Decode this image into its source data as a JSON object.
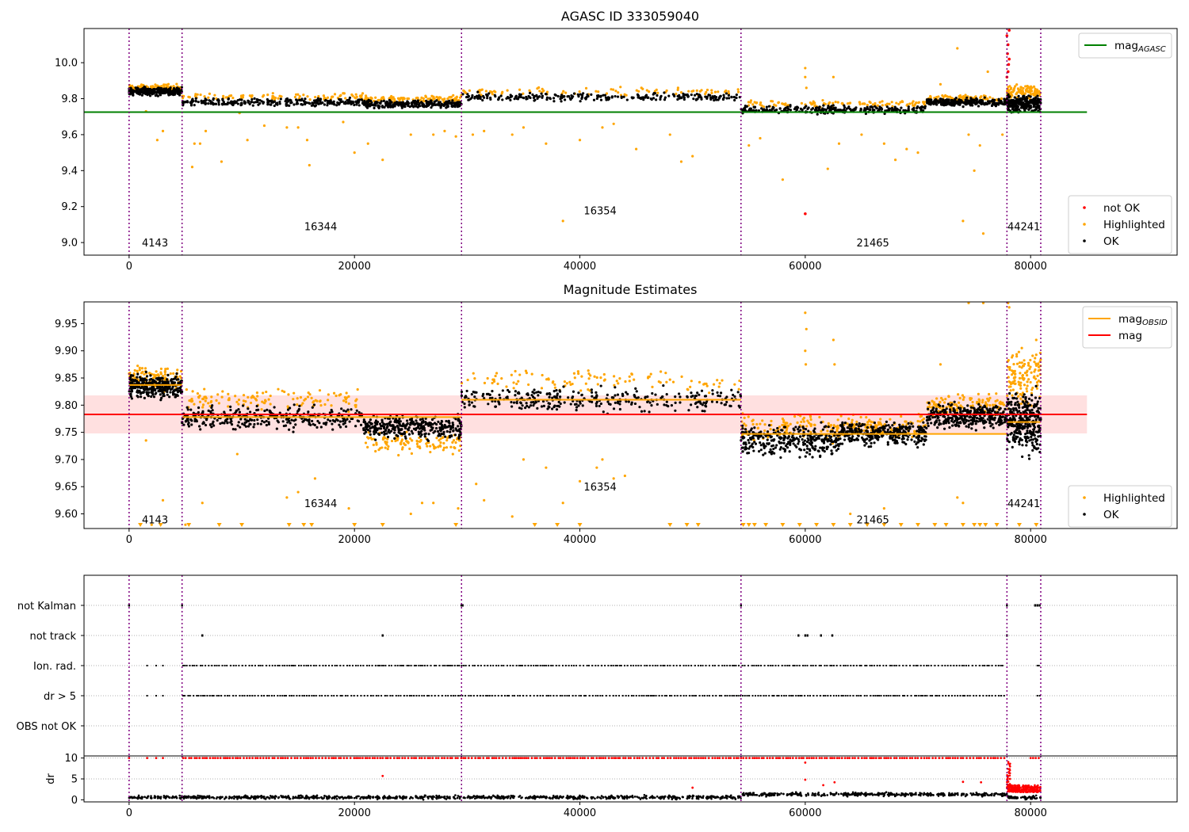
{
  "colors": {
    "ok": "#000000",
    "highlighted": "#ffa500",
    "not_ok": "#ff0000",
    "agasc_line": "#008000",
    "obsid_line": "#ffa500",
    "mag_line": "#ff0000",
    "mag_band": "#ffe0e0",
    "obs_boundary": "#800080",
    "grid": "#b0b0b0"
  },
  "chart_data": [
    {
      "type": "scatter",
      "title": "AGASC ID 333059040",
      "xlim": [
        -4000,
        93000
      ],
      "ylim": [
        8.93,
        10.19
      ],
      "x_ticks": [
        "0",
        "20000",
        "40000",
        "60000",
        "80000"
      ],
      "y_ticks": [
        "9.0",
        "9.2",
        "9.4",
        "9.6",
        "9.8",
        "10.0"
      ],
      "obs_boundaries": [
        0,
        4700,
        29500,
        54300,
        77900,
        80900
      ],
      "obs_labels": [
        {
          "text": "4143",
          "x": 2300,
          "y": 9.0
        },
        {
          "text": "16344",
          "x": 17000,
          "y": 9.09
        },
        {
          "text": "16354",
          "x": 41800,
          "y": 9.18
        },
        {
          "text": "21465",
          "x": 66000,
          "y": 9.0
        },
        {
          "text": "44241",
          "x": 79400,
          "y": 9.09
        }
      ],
      "hlines": [
        {
          "name": "mag_AGASC",
          "y": 9.725,
          "x_end": 85000
        }
      ],
      "segments": [
        {
          "x0": 0,
          "x1": 4700,
          "ok_center": 9.84,
          "ok_spread": 0.03,
          "hi_center": 9.86
        },
        {
          "x0": 4700,
          "x1": 20800,
          "ok_center": 9.78,
          "ok_spread": 0.03,
          "hi_center": 9.81
        },
        {
          "x0": 20800,
          "x1": 29500,
          "ok_center": 9.77,
          "ok_spread": 0.03,
          "hi_center": 9.8
        },
        {
          "x0": 29500,
          "x1": 54300,
          "ok_center": 9.81,
          "ok_spread": 0.03,
          "hi_center": 9.84
        },
        {
          "x0": 54300,
          "x1": 70800,
          "ok_center": 9.74,
          "ok_spread": 0.03,
          "hi_center": 9.77
        },
        {
          "x0": 70800,
          "x1": 77900,
          "ok_center": 9.78,
          "ok_spread": 0.03,
          "hi_center": 9.8
        },
        {
          "x0": 77900,
          "x1": 80900,
          "ok_center": 9.77,
          "ok_spread": 0.06,
          "hi_center": 9.84
        }
      ],
      "highlighted_outliers": [
        [
          1500,
          9.73
        ],
        [
          2500,
          9.57
        ],
        [
          3000,
          9.62
        ],
        [
          5800,
          9.55
        ],
        [
          5600,
          9.42
        ],
        [
          6300,
          9.55
        ],
        [
          6800,
          9.62
        ],
        [
          8200,
          9.45
        ],
        [
          9800,
          9.72
        ],
        [
          10500,
          9.57
        ],
        [
          12000,
          9.65
        ],
        [
          14000,
          9.64
        ],
        [
          15000,
          9.64
        ],
        [
          15800,
          9.57
        ],
        [
          16000,
          9.43
        ],
        [
          19000,
          9.67
        ],
        [
          20000,
          9.5
        ],
        [
          21200,
          9.55
        ],
        [
          22500,
          9.46
        ],
        [
          25000,
          9.6
        ],
        [
          27000,
          9.6
        ],
        [
          28000,
          9.62
        ],
        [
          29000,
          9.59
        ],
        [
          30500,
          9.6
        ],
        [
          31500,
          9.62
        ],
        [
          34000,
          9.6
        ],
        [
          35000,
          9.64
        ],
        [
          37000,
          9.55
        ],
        [
          38500,
          9.12
        ],
        [
          40000,
          9.57
        ],
        [
          42000,
          9.64
        ],
        [
          43000,
          9.66
        ],
        [
          45000,
          9.52
        ],
        [
          48000,
          9.6
        ],
        [
          49000,
          9.45
        ],
        [
          50000,
          9.48
        ],
        [
          55000,
          9.54
        ],
        [
          56000,
          9.58
        ],
        [
          58000,
          9.35
        ],
        [
          60000,
          9.97
        ],
        [
          60000,
          9.92
        ],
        [
          60100,
          9.86
        ],
        [
          62000,
          9.41
        ],
        [
          62500,
          9.92
        ],
        [
          63000,
          9.55
        ],
        [
          65000,
          9.6
        ],
        [
          67000,
          9.55
        ],
        [
          68000,
          9.46
        ],
        [
          69000,
          9.52
        ],
        [
          70000,
          9.5
        ],
        [
          72000,
          9.88
        ],
        [
          73500,
          10.08
        ],
        [
          74000,
          9.12
        ],
        [
          74500,
          9.6
        ],
        [
          75000,
          9.4
        ],
        [
          75500,
          9.54
        ],
        [
          75800,
          9.05
        ],
        [
          76200,
          9.95
        ],
        [
          77500,
          9.6
        ]
      ],
      "not_ok_points": [
        [
          60000,
          9.16
        ],
        [
          77900,
          10.15
        ],
        [
          78000,
          10.1
        ],
        [
          78100,
          10.18
        ],
        [
          77950,
          10.05
        ],
        [
          78050,
          9.99
        ],
        [
          78000,
          9.95
        ],
        [
          77900,
          9.92
        ],
        [
          78100,
          10.02
        ]
      ],
      "legends": [
        {
          "entries": [
            {
              "label": "mag",
              "sub": "AGASC",
              "kind": "line",
              "color": "#008000"
            }
          ]
        },
        {
          "entries": [
            {
              "label": "not OK",
              "kind": "dot",
              "color": "#ff0000"
            },
            {
              "label": "Highlighted",
              "kind": "dot",
              "color": "#ffa500"
            },
            {
              "label": "OK",
              "kind": "dot",
              "color": "#000000"
            }
          ]
        }
      ]
    },
    {
      "type": "scatter",
      "title": "Magnitude Estimates",
      "xlim": [
        -4000,
        93000
      ],
      "ylim": [
        9.573,
        9.99
      ],
      "x_ticks": [
        "0",
        "20000",
        "40000",
        "60000",
        "80000"
      ],
      "y_ticks": [
        "9.60",
        "9.65",
        "9.70",
        "9.75",
        "9.80",
        "9.85",
        "9.90",
        "9.95"
      ],
      "obs_boundaries": [
        0,
        4700,
        29500,
        54300,
        77900,
        80900
      ],
      "obs_labels": [
        {
          "text": "4143",
          "x": 2300,
          "y": 9.59
        },
        {
          "text": "16344",
          "x": 17000,
          "y": 9.62
        },
        {
          "text": "16354",
          "x": 41800,
          "y": 9.65
        },
        {
          "text": "21465",
          "x": 66000,
          "y": 9.59
        },
        {
          "text": "44241",
          "x": 79400,
          "y": 9.62
        }
      ],
      "mag_line": {
        "y": 9.783,
        "x_end": 85000
      },
      "mag_band": [
        9.748,
        9.818
      ],
      "obsid_lines": [
        {
          "x0": 0,
          "x1": 4700,
          "y": 9.837
        },
        {
          "x0": 4700,
          "x1": 29500,
          "y": 9.778
        },
        {
          "x0": 29500,
          "x1": 54300,
          "y": 9.81
        },
        {
          "x0": 54300,
          "x1": 77900,
          "y": 9.747
        },
        {
          "x0": 77900,
          "x1": 80900,
          "y": 9.769
        }
      ],
      "segments": [
        {
          "x0": 0,
          "x1": 4700,
          "ok_center": 9.835,
          "ok_spread": 0.03,
          "hi_center": 9.85
        },
        {
          "x0": 4700,
          "x1": 20800,
          "ok_center": 9.777,
          "ok_spread": 0.03,
          "hi_center": 9.81
        },
        {
          "x0": 20800,
          "x1": 29500,
          "ok_center": 9.76,
          "ok_spread": 0.03,
          "hi_center": 9.73
        },
        {
          "x0": 29500,
          "x1": 54300,
          "ok_center": 9.81,
          "ok_spread": 0.03,
          "hi_center": 9.845
        },
        {
          "x0": 54300,
          "x1": 63000,
          "ok_center": 9.735,
          "ok_spread": 0.04,
          "hi_center": 9.76
        },
        {
          "x0": 63000,
          "x1": 70800,
          "ok_center": 9.748,
          "ok_spread": 0.03,
          "hi_center": 9.76
        },
        {
          "x0": 70800,
          "x1": 77900,
          "ok_center": 9.78,
          "ok_spread": 0.03,
          "hi_center": 9.8
        },
        {
          "x0": 77900,
          "x1": 80900,
          "ok_center": 9.77,
          "ok_spread": 0.08,
          "hi_center": 9.85
        }
      ],
      "highlighted_outliers": [
        [
          1500,
          9.735
        ],
        [
          2000,
          9.58
        ],
        [
          3000,
          9.625
        ],
        [
          5000,
          9.58
        ],
        [
          6500,
          9.62
        ],
        [
          9600,
          9.71
        ],
        [
          14000,
          9.63
        ],
        [
          15000,
          9.64
        ],
        [
          16500,
          9.665
        ],
        [
          19500,
          9.61
        ],
        [
          25000,
          9.6
        ],
        [
          26000,
          9.62
        ],
        [
          27000,
          9.62
        ],
        [
          29200,
          9.61
        ],
        [
          30800,
          9.655
        ],
        [
          31500,
          9.625
        ],
        [
          34000,
          9.595
        ],
        [
          35000,
          9.7
        ],
        [
          37000,
          9.685
        ],
        [
          38500,
          9.62
        ],
        [
          40000,
          9.66
        ],
        [
          41500,
          9.685
        ],
        [
          42000,
          9.7
        ],
        [
          43000,
          9.665
        ],
        [
          44000,
          9.67
        ],
        [
          60000,
          9.97
        ],
        [
          60100,
          9.94
        ],
        [
          60000,
          9.9
        ],
        [
          60050,
          9.875
        ],
        [
          62500,
          9.92
        ],
        [
          62600,
          9.875
        ],
        [
          64000,
          9.6
        ],
        [
          67000,
          9.61
        ],
        [
          72000,
          9.875
        ],
        [
          73500,
          9.63
        ],
        [
          74000,
          9.62
        ],
        [
          74500,
          9.99
        ],
        [
          75800,
          9.99
        ],
        [
          78000,
          9.99
        ],
        [
          78100,
          9.98
        ],
        [
          80500,
          9.92
        ]
      ],
      "lower_limit_markers_x": [
        1000,
        2800,
        5300,
        8000,
        10000,
        14200,
        15500,
        16200,
        20000,
        22500,
        29000,
        36000,
        38000,
        40000,
        48000,
        49500,
        50500,
        54500,
        55000,
        55500,
        56500,
        58000,
        59500,
        61000,
        62500,
        64000,
        65500,
        67000,
        68500,
        70000,
        71500,
        72500,
        74000,
        75000,
        75500,
        76000,
        77000,
        79000,
        80500
      ],
      "legends": [
        {
          "entries": [
            {
              "label": "mag",
              "sub": "OBSID",
              "kind": "line",
              "color": "#ffa500"
            },
            {
              "label": "mag",
              "kind": "line",
              "color": "#ff0000"
            }
          ]
        },
        {
          "entries": [
            {
              "label": "Highlighted",
              "kind": "dot",
              "color": "#ffa500"
            },
            {
              "label": "OK",
              "kind": "dot",
              "color": "#000000"
            }
          ]
        }
      ]
    },
    {
      "type": "scatter",
      "title": "",
      "xlim": [
        -4000,
        93000
      ],
      "categories": [
        "not Kalman",
        "not track",
        "Ion. rad.",
        "dr > 5",
        "OBS not OK"
      ],
      "obs_boundaries": [
        0,
        4700,
        29500,
        54300,
        77900,
        80900
      ],
      "flag_points": {
        "not Kalman": [
          0,
          4700,
          29500,
          29600,
          54300,
          77900,
          80400,
          80600,
          80800
        ],
        "not track": [
          6500,
          22500,
          59400,
          60000,
          60200,
          61400,
          62400,
          77900
        ],
        "Ion. rad.": {
          "dense_ranges": [
            [
              4800,
              77700
            ],
            [
              80600,
              80900
            ]
          ],
          "sparse": [
            1600,
            2400,
            3000
          ]
        },
        "dr > 5": {
          "dense_ranges": [
            [
              4800,
              77700
            ],
            [
              80600,
              80900
            ]
          ],
          "sparse": [
            1600,
            2400,
            3000
          ]
        },
        "OBS not OK": []
      }
    },
    {
      "type": "scatter",
      "title": "",
      "ylabel": "dr",
      "xlim": [
        -4000,
        93000
      ],
      "ylim": [
        -0.5,
        10.5
      ],
      "x_ticks": [
        "0",
        "20000",
        "40000",
        "60000",
        "80000"
      ],
      "y_ticks": [
        "0",
        "5",
        "10"
      ],
      "obs_boundaries": [
        0,
        4700,
        29500,
        54300,
        77900,
        80900
      ],
      "ok_level": 0.6,
      "ok_level_late": 1.3,
      "red_cap_value": 10,
      "red_cap_ranges": [
        [
          4800,
          77700
        ],
        [
          80000,
          80900
        ]
      ],
      "red_sparse": [
        [
          0,
          10
        ],
        [
          1600,
          10
        ],
        [
          2400,
          10
        ],
        [
          3000,
          10
        ],
        [
          22500,
          5.7
        ],
        [
          60000,
          8.9
        ],
        [
          60000,
          4.8
        ],
        [
          61600,
          3.5
        ],
        [
          62600,
          4.2
        ],
        [
          74000,
          4.3
        ],
        [
          75600,
          4.2
        ],
        [
          50000,
          2.9
        ]
      ],
      "red_cluster": {
        "x0": 77900,
        "x1": 80900,
        "y0": 1.8,
        "y1": 3.5
      }
    }
  ]
}
